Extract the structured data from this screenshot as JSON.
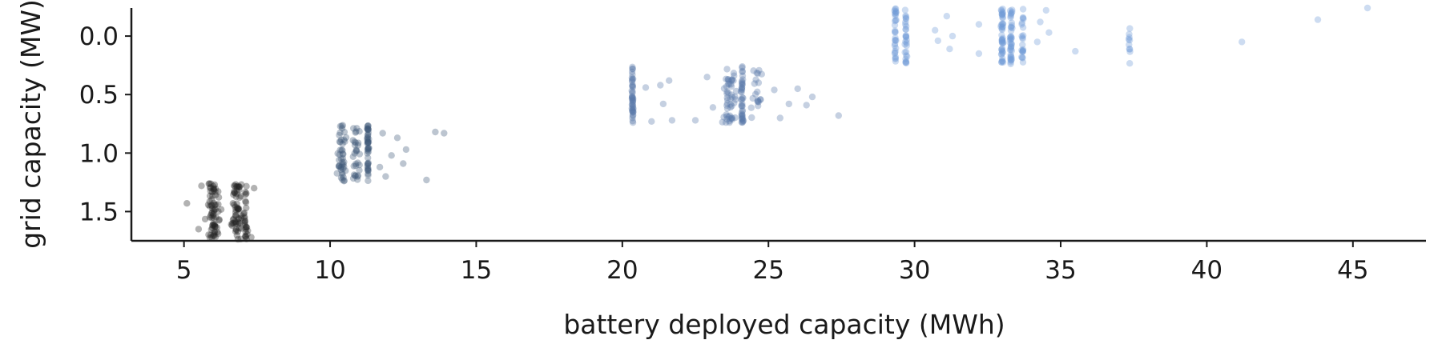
{
  "chart_data": {
    "type": "scatter",
    "title": "",
    "xlabel": "battery deployed capacity (MWh)",
    "ylabel": "grid capacity (MW)",
    "xlim": [
      3.2,
      47.5
    ],
    "ylim": [
      1.75,
      -0.24
    ],
    "y_inverted": true,
    "xticks": [
      5,
      10,
      15,
      20,
      25,
      30,
      35,
      40,
      45
    ],
    "xtick_labels": [
      "5",
      "10",
      "15",
      "20",
      "25",
      "30",
      "35",
      "40",
      "45"
    ],
    "yticks": [
      0.0,
      0.5,
      1.0,
      1.5
    ],
    "ytick_labels": [
      "0.0",
      "0.5",
      "1.0",
      "1.5"
    ],
    "grid": false,
    "legend": "none",
    "marker_alpha": 0.35,
    "series": [
      {
        "color": "#222222",
        "y_center": 1.5,
        "y_jitter": 0.24,
        "clusters": [
          {
            "x": 6.0,
            "x_spread": 0.45,
            "count": 70
          },
          {
            "x": 6.8,
            "x_spread": 0.3,
            "count": 60
          },
          {
            "x": 7.1,
            "x_spread": 0.1,
            "count": 25
          }
        ],
        "points": [
          [
            5.1,
            1.43
          ],
          [
            5.5,
            1.65
          ],
          [
            5.6,
            1.28
          ],
          [
            7.3,
            1.72
          ],
          [
            7.4,
            1.3
          ]
        ]
      },
      {
        "color": "#3f5878",
        "y_center": 1.0,
        "y_jitter": 0.24,
        "clusters": [
          {
            "x": 10.4,
            "x_spread": 0.25,
            "count": 45
          },
          {
            "x": 10.9,
            "x_spread": 0.2,
            "count": 30
          },
          {
            "x": 11.3,
            "x_spread": 0.04,
            "count": 45
          }
        ],
        "points": [
          [
            11.7,
            1.12
          ],
          [
            11.8,
            0.83
          ],
          [
            12.1,
            1.02
          ],
          [
            12.3,
            0.87
          ],
          [
            12.5,
            1.09
          ],
          [
            12.6,
            0.97
          ],
          [
            13.3,
            1.23
          ],
          [
            13.6,
            0.82
          ],
          [
            13.9,
            0.83
          ],
          [
            11.9,
            1.2
          ]
        ]
      },
      {
        "color": "#5878a8",
        "y_center": 0.5,
        "y_jitter": 0.24,
        "clusters": [
          {
            "x": 20.35,
            "x_spread": 0.05,
            "count": 45
          },
          {
            "x": 23.7,
            "x_spread": 0.35,
            "count": 50
          },
          {
            "x": 24.1,
            "x_spread": 0.05,
            "count": 40
          },
          {
            "x": 24.6,
            "x_spread": 0.3,
            "count": 20
          }
        ],
        "points": [
          [
            20.8,
            0.44
          ],
          [
            21.0,
            0.73
          ],
          [
            21.3,
            0.42
          ],
          [
            21.4,
            0.58
          ],
          [
            21.6,
            0.38
          ],
          [
            21.7,
            0.72
          ],
          [
            22.5,
            0.72
          ],
          [
            22.9,
            0.35
          ],
          [
            23.1,
            0.61
          ],
          [
            25.2,
            0.46
          ],
          [
            25.4,
            0.7
          ],
          [
            25.7,
            0.58
          ],
          [
            26.0,
            0.45
          ],
          [
            26.3,
            0.59
          ],
          [
            26.5,
            0.52
          ],
          [
            27.4,
            0.68
          ]
        ]
      },
      {
        "color": "#6f9ad8",
        "y_center": 0.0,
        "y_jitter": 0.24,
        "clusters": [
          {
            "x": 29.35,
            "x_spread": 0.05,
            "count": 30
          },
          {
            "x": 29.7,
            "x_spread": 0.05,
            "count": 28
          },
          {
            "x": 33.0,
            "x_spread": 0.06,
            "count": 45
          },
          {
            "x": 33.3,
            "x_spread": 0.06,
            "count": 40
          },
          {
            "x": 33.7,
            "x_spread": 0.06,
            "count": 22
          },
          {
            "x": 37.35,
            "x_spread": 0.04,
            "count": 10
          }
        ],
        "points": [
          [
            30.7,
            -0.05
          ],
          [
            30.8,
            0.04
          ],
          [
            31.1,
            -0.17
          ],
          [
            31.2,
            0.11
          ],
          [
            31.3,
            0.0
          ],
          [
            32.2,
            -0.1
          ],
          [
            32.2,
            0.15
          ],
          [
            34.2,
            0.05
          ],
          [
            34.3,
            -0.12
          ],
          [
            34.5,
            -0.22
          ],
          [
            34.6,
            -0.03
          ],
          [
            35.5,
            0.13
          ],
          [
            41.2,
            0.05
          ],
          [
            43.8,
            -0.14
          ],
          [
            45.5,
            -0.24
          ]
        ]
      }
    ]
  }
}
